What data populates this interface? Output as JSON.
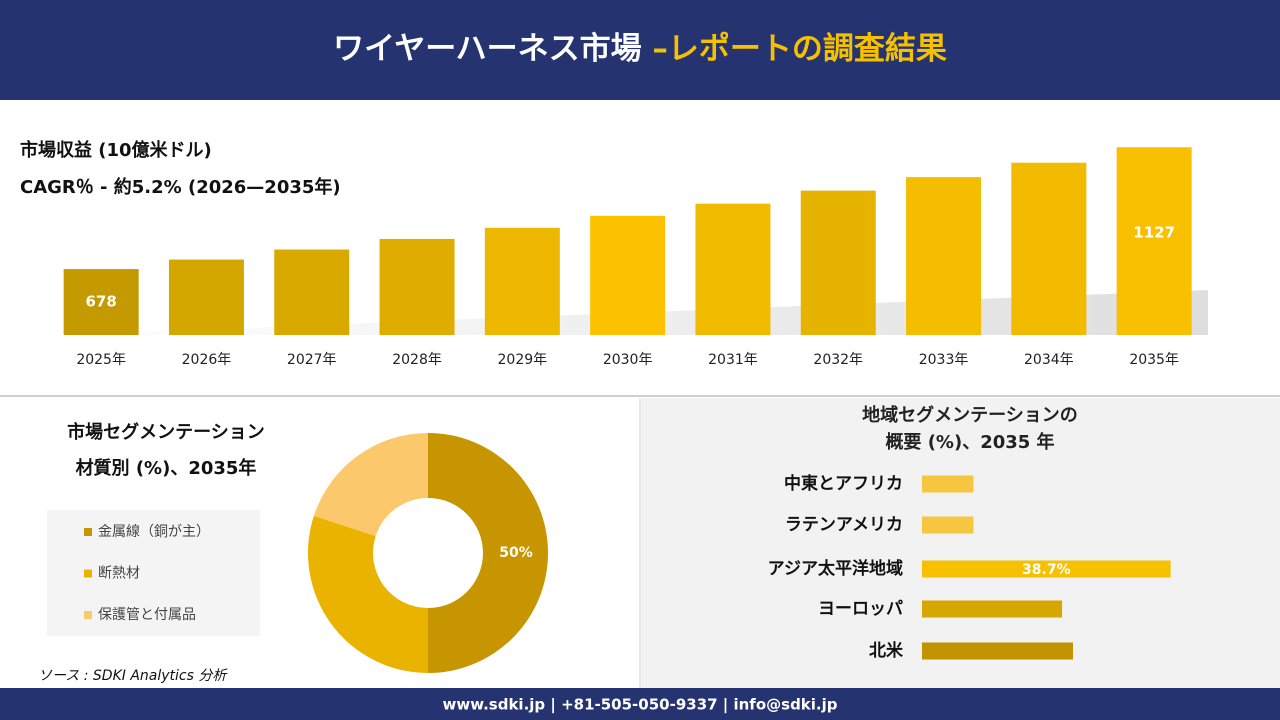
{
  "header": {
    "title": "ワイヤーハーネス市場 ",
    "title_highlight": "–レポートの調査結果"
  },
  "chart_data": [
    {
      "type": "bar",
      "title": "市場収益 (10億米ドル)",
      "subtitle": "CAGR％ - 約5.2% (2026—2035年)",
      "categories": [
        "2025年",
        "2026年",
        "2027年",
        "2028年",
        "2029年",
        "2030年",
        "2031年",
        "2032年",
        "2033年",
        "2034年",
        "2035年"
      ],
      "values": [
        678,
        713,
        750,
        789,
        830,
        874,
        919,
        967,
        1017,
        1070,
        1127
      ],
      "value_labels": [
        "678",
        null,
        null,
        null,
        null,
        null,
        null,
        null,
        null,
        null,
        "1127"
      ],
      "colors": [
        "#c49a00",
        "#d4a700",
        "#daa900",
        "#dead00",
        "#efb800",
        "#fcc200",
        "#f1bb00",
        "#e6b300",
        "#f5bd00",
        "#f2bb00",
        "#f8c000"
      ],
      "ylim": [
        435,
        1150
      ]
    },
    {
      "type": "donut",
      "title": [
        "市場セグメンテーション",
        "材質別 (%)、2035年"
      ],
      "categories": [
        "金属線（銅が主）",
        "断熱材",
        "保護管と付属品"
      ],
      "values": [
        50,
        30,
        20
      ],
      "value_labels": [
        "50%",
        null,
        null
      ],
      "colors": [
        "#c69500",
        "#e9b300",
        "#fbc96b"
      ]
    },
    {
      "type": "hbar",
      "title": [
        "地域セグメンテーションの",
        "概要 (%)、2035 年"
      ],
      "categories": [
        "中東とアフリカ",
        "ラテンアメリカ",
        "アジア太平洋地域",
        "ヨーロッパ",
        "北米"
      ],
      "values": [
        8,
        8,
        38.7,
        21.8,
        23.5
      ],
      "value_labels": [
        null,
        null,
        "38.7%",
        null,
        null
      ],
      "colors": [
        "#f6c640",
        "#f6c640",
        "#f7c000",
        "#d6a700",
        "#c29300"
      ],
      "xlim": [
        0,
        40
      ]
    }
  ],
  "source": "ソース : SDKI Analytics 分析",
  "footer": "www.sdki.jp | +81-505-050-9337 | info@sdki.jp"
}
